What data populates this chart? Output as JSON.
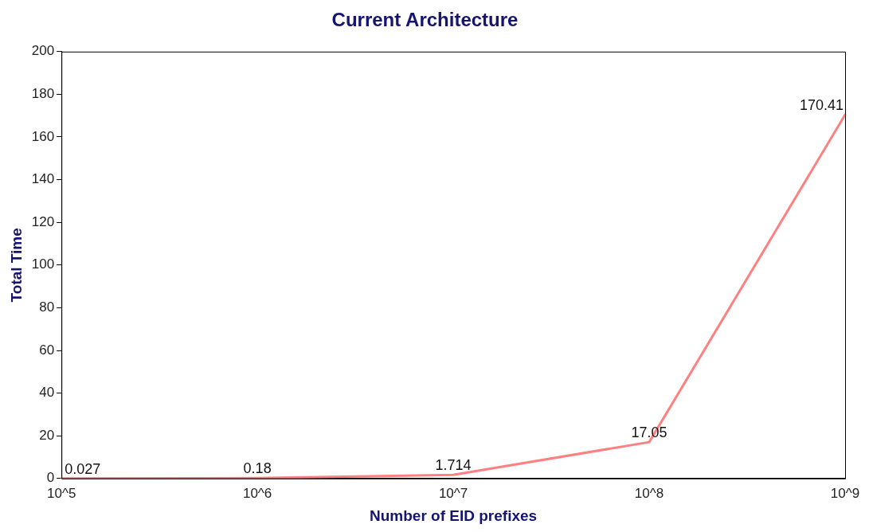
{
  "chart_data": {
    "type": "line",
    "title": "Current Architecture",
    "xlabel": "Number of EID prefixes",
    "ylabel": "Total Time",
    "categories": [
      "10^5",
      "10^6",
      "10^7",
      "10^8",
      "10^9"
    ],
    "series": [
      {
        "color": "#ff8080",
        "values": [
          0.027,
          0.18,
          1.714,
          17.05,
          170.41
        ]
      }
    ],
    "ylim": [
      0,
      200
    ],
    "yticks": [
      0,
      20,
      40,
      60,
      80,
      100,
      120,
      140,
      160,
      180,
      200
    ],
    "data_labels": true,
    "marker": "none",
    "line_style": "solid"
  }
}
